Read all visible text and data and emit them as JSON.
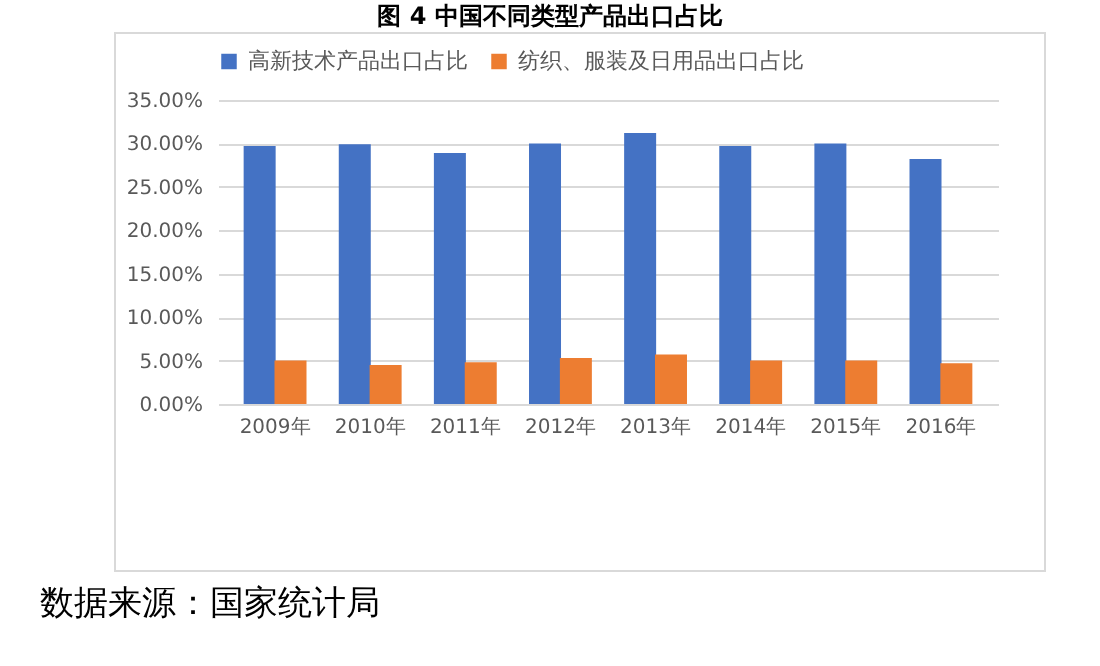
{
  "chart_data": {
    "type": "bar",
    "title": "图 4  中国不同类型产品出口占比",
    "categories": [
      "2009年",
      "2010年",
      "2011年",
      "2012年",
      "2013年",
      "2014年",
      "2015年",
      "2016年"
    ],
    "series": [
      {
        "name": "高新技术产品出口占比",
        "color": "#4472c4",
        "values": [
          29.7,
          29.9,
          28.9,
          30.0,
          31.2,
          29.7,
          30.0,
          28.2
        ]
      },
      {
        "name": "纺织、服装及日用品出口占比",
        "color": "#ed7d31",
        "values": [
          5.0,
          4.5,
          4.8,
          5.3,
          5.7,
          5.0,
          5.0,
          4.7
        ]
      }
    ],
    "ylim": [
      0,
      35
    ],
    "yticks": [
      {
        "value": 0,
        "label": "0.00%"
      },
      {
        "value": 5,
        "label": "5.00%"
      },
      {
        "value": 10,
        "label": "10.00%"
      },
      {
        "value": 15,
        "label": "15.00%"
      },
      {
        "value": 20,
        "label": "20.00%"
      },
      {
        "value": 25,
        "label": "25.00%"
      },
      {
        "value": 30,
        "label": "30.00%"
      },
      {
        "value": 35,
        "label": "35.00%"
      }
    ],
    "grid": "y",
    "legend": "top",
    "annotations": [
      "数据来源：国家统计局"
    ]
  }
}
